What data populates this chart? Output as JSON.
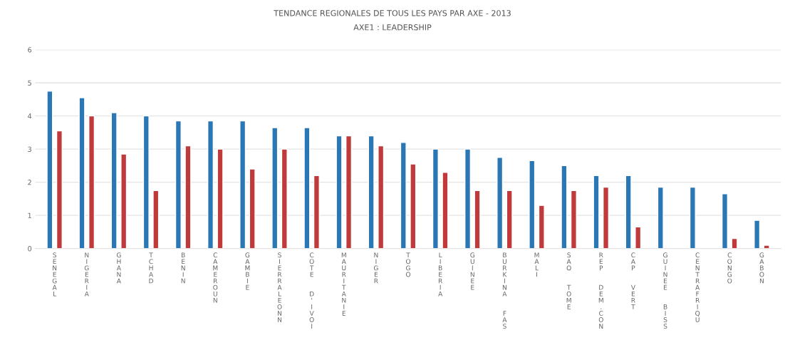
{
  "chart_data": {
    "type": "bar",
    "title": "TENDANCE REGIONALES DE TOUS LES PAYS PAR AXE - 2013",
    "subtitle": "AXE1 : LEADERSHIP",
    "categories": [
      "SENEGAL",
      "NIGERIA",
      "GHANA",
      "TCHAD",
      "BENIN",
      "CAMEROUN",
      "GAMBIE",
      "SIERRALEONN",
      "COTE  D'IVOI",
      "MAURITANIE",
      "NIGER",
      "TOGO",
      "LIBERIA",
      "GUINEE",
      "BURKINA  FAS",
      "MALI",
      "SAO  TOME",
      "REP  DEM.CON",
      "CAP  VERT",
      "GUINEE  BISS",
      "CENTRAFRIQU",
      "CONGO",
      "GABON"
    ],
    "series": [
      {
        "color": "#2a77b5",
        "values": [
          4.75,
          4.55,
          4.1,
          4.0,
          3.85,
          3.85,
          3.85,
          3.65,
          3.65,
          3.4,
          3.4,
          3.2,
          3.0,
          3.0,
          2.75,
          2.65,
          2.5,
          2.2,
          2.2,
          1.85,
          1.85,
          1.65,
          0.85
        ]
      },
      {
        "color": "#c0393b",
        "values": [
          3.55,
          4.0,
          2.85,
          1.75,
          3.1,
          3.0,
          2.4,
          3.0,
          2.2,
          3.4,
          3.1,
          2.55,
          2.3,
          1.75,
          1.75,
          1.3,
          1.75,
          1.85,
          0.65,
          null,
          null,
          0.3,
          0.1
        ]
      }
    ],
    "ylim": [
      0,
      6
    ],
    "yticks": [
      0,
      1,
      2,
      3,
      4,
      5,
      6
    ],
    "grid": "y"
  }
}
